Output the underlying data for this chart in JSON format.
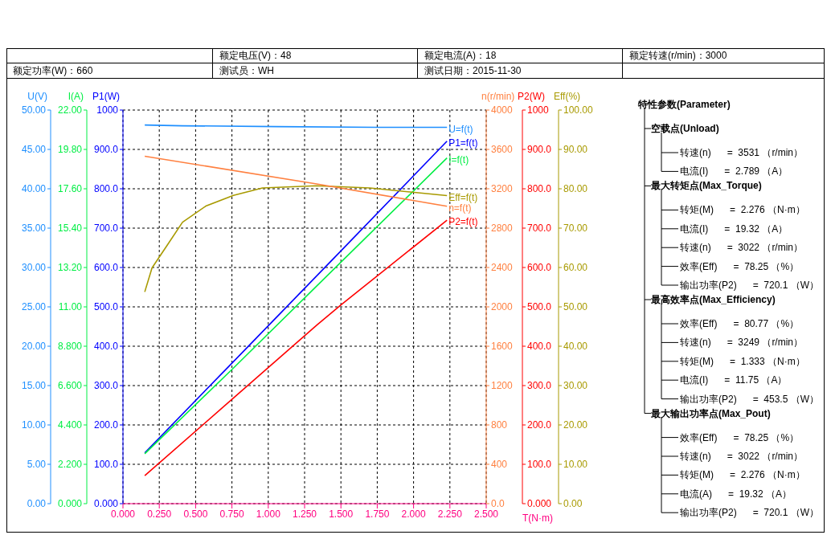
{
  "chart_data": [
    {
      "type": "line",
      "annotations": [
        "额定电压(V)：48",
        "额定电流(A)：18",
        "额定转速(r/min)：3000",
        "额定功率(W)：660",
        "测试员：WH",
        "测试日期：2015-11-30"
      ],
      "xlabel": "T(N·m)",
      "ylabel": "U(V)",
      "y2label": "I(A)",
      "y3label": "P1(W)",
      "xlim": [
        0,
        2.5
      ],
      "xticks": [
        {
          "value": 0,
          "label": "0.000"
        },
        {
          "value": 0.25,
          "label": "0.250"
        },
        {
          "value": 0.5,
          "label": "0.500"
        },
        {
          "value": 0.75,
          "label": "0.750"
        },
        {
          "value": 1,
          "label": "1.000"
        },
        {
          "value": 1.25,
          "label": "1.250"
        },
        {
          "value": 1.5,
          "label": "1.500"
        },
        {
          "value": 1.75,
          "label": "1.750"
        },
        {
          "value": 2,
          "label": "2.000"
        },
        {
          "value": 2.25,
          "label": "2.250"
        },
        {
          "value": 2.5,
          "label": "2.500"
        }
      ],
      "ylim": [
        0,
        50
      ],
      "yticks": [
        {
          "value": 0,
          "label": "0.00"
        },
        {
          "value": 5,
          "label": "5.00"
        },
        {
          "value": 10,
          "label": "10.00"
        },
        {
          "value": 15,
          "label": "15.00"
        },
        {
          "value": 20,
          "label": "20.00"
        },
        {
          "value": 25,
          "label": "25.00"
        },
        {
          "value": 30,
          "label": "30.00"
        },
        {
          "value": 35,
          "label": "35.00"
        },
        {
          "value": 40,
          "label": "40.00"
        },
        {
          "value": 45,
          "label": "45.00"
        },
        {
          "value": 50,
          "label": "50.00"
        }
      ],
      "y2lim": [
        0,
        22
      ],
      "y2ticks": [
        {
          "value": 0,
          "label": "0.000"
        },
        {
          "value": 2.2,
          "label": "2.200"
        },
        {
          "value": 4.4,
          "label": "4.400"
        },
        {
          "value": 6.6,
          "label": "6.600"
        },
        {
          "value": 8.8,
          "label": "8.800"
        },
        {
          "value": 11,
          "label": "11.00"
        },
        {
          "value": 13.2,
          "label": "13.20"
        },
        {
          "value": 15.4,
          "label": "15.40"
        },
        {
          "value": 17.6,
          "label": "17.60"
        },
        {
          "value": 19.8,
          "label": "19.80"
        },
        {
          "value": 22,
          "label": "22.00"
        }
      ],
      "y3lim": [
        0,
        1000
      ],
      "y3ticks": [
        {
          "value": 0,
          "label": "0.000"
        },
        {
          "value": 100,
          "label": "100.0"
        },
        {
          "value": 200,
          "label": "200.0"
        },
        {
          "value": 300,
          "label": "300.0"
        },
        {
          "value": 400,
          "label": "400.0"
        },
        {
          "value": 500,
          "label": "500.0"
        },
        {
          "value": 600,
          "label": "600.0"
        },
        {
          "value": 700,
          "label": "700.0"
        },
        {
          "value": 800,
          "label": "800.0"
        },
        {
          "value": 900,
          "label": "900.0"
        },
        1000
      ],
      "grid": true,
      "series": [
        {
          "name": "U=f(t)",
          "color": "#1e8fff",
          "x": [
            0.15,
            0.41,
            1.06,
            1.75,
            2.23
          ],
          "values": [
            48.1,
            48.0,
            47.9,
            47.8,
            47.8
          ]
        },
        {
          "name": "P1=f(t)",
          "color": "#0000ff",
          "axis": "y3",
          "x": [
            0.15,
            0.75,
            1.5,
            2.23
          ],
          "values": [
            129,
            357,
            642,
            921
          ]
        },
        {
          "name": "I=f(t)",
          "color": "#00ee44",
          "axis": "y2",
          "x": [
            0.15,
            0.75,
            1.5,
            2.23
          ],
          "values": [
            2.79,
            7.5,
            13.5,
            19.32
          ]
        }
      ]
    },
    {
      "type": "line",
      "tick_labels": "y",
      "ylabel": "n(r/min)",
      "y2label": "P2(W)",
      "y3label": "Eff(%)",
      "xlim": [
        0,
        2.5
      ],
      "ylim": [
        0,
        4000
      ],
      "yticks": [
        {
          "value": 0,
          "label": "0.0"
        },
        400,
        800,
        1200,
        1600,
        2000,
        2400,
        2800,
        3200,
        3600,
        4000
      ],
      "y2lim": [
        0,
        1000
      ],
      "y2ticks": [
        {
          "value": 0,
          "label": "0.000"
        },
        {
          "value": 100,
          "label": "100.0"
        },
        {
          "value": 200,
          "label": "200.0"
        },
        {
          "value": 300,
          "label": "300.0"
        },
        {
          "value": 400,
          "label": "400.0"
        },
        {
          "value": 500,
          "label": "500.0"
        },
        {
          "value": 600,
          "label": "600.0"
        },
        {
          "value": 700,
          "label": "700.0"
        },
        {
          "value": 800,
          "label": "800.0"
        },
        {
          "value": 900,
          "label": "900.0"
        },
        1000
      ],
      "y3lim": [
        0,
        100
      ],
      "y3ticks": [
        {
          "value": 0,
          "label": "0.00"
        },
        {
          "value": 10,
          "label": "10.00"
        },
        {
          "value": 20,
          "label": "20.00"
        },
        {
          "value": 30,
          "label": "30.00"
        },
        {
          "value": 40,
          "label": "40.00"
        },
        {
          "value": 50,
          "label": "50.00"
        },
        {
          "value": 60,
          "label": "60.00"
        },
        {
          "value": 70,
          "label": "70.00"
        },
        {
          "value": 80,
          "label": "80.00"
        },
        {
          "value": 90,
          "label": "90.00"
        },
        {
          "value": 100,
          "label": "100.00"
        }
      ],
      "series": [
        {
          "name": "Eff=f(t)",
          "color": "#a89a00",
          "axis": "y3",
          "x": [
            0.15,
            0.2,
            0.3,
            0.41,
            0.57,
            0.76,
            0.96,
            1.333,
            1.7,
            2.23
          ],
          "values": [
            53.8,
            59.9,
            65.4,
            71.5,
            75.6,
            78.3,
            80.2,
            80.77,
            80.2,
            78.25
          ]
        },
        {
          "name": "n=f(t)",
          "color": "#ff8040",
          "x": [
            0.15,
            1.333,
            2.23
          ],
          "values": [
            3531,
            3249,
            3022
          ]
        },
        {
          "name": "P2=f(t)",
          "color": "#ff0000",
          "axis": "y2",
          "x": [
            0.15,
            0.75,
            1.333,
            1.5,
            2.23
          ],
          "values": [
            71,
            265,
            453.5,
            505,
            720.1
          ]
        }
      ]
    },
    {
      "type": "other",
      "title": "特性参数(Parameter)",
      "annotations": [
        "空载点(Unload)",
        "转速(n)      =  3531 （r/min）",
        "电流(I)      =  2.789 （A）",
        "最大转矩点(Max_Torque)",
        "转矩(M)      =  2.276 （N·m）",
        "电流(I)      =  19.32 （A）",
        "转速(n)      =  3022 （r/min）",
        "效率(Eff)      =  78.25 （%）",
        "输出功率(P2)      =  720.1 （W）",
        "最高效率点(Max_Efficiency)",
        "效率(Eff)      =  80.77 （%）",
        "转速(n)      =  3249 （r/min）",
        "转矩(M)      =  1.333 （N·m）",
        "电流(I)      =  11.75 （A）",
        "输出功率(P2)      =  453.5 （W）",
        "最大输出功率点(Max_Pout)",
        "效率(Eff)      =  78.25 （%）",
        "转速(n)      =  3022 （r/min）",
        "转矩(M)      =  2.276 （N·m）",
        "电流(A)      =  19.32 （A）",
        "输出功率(P2)      =  720.1 （W）"
      ]
    }
  ]
}
